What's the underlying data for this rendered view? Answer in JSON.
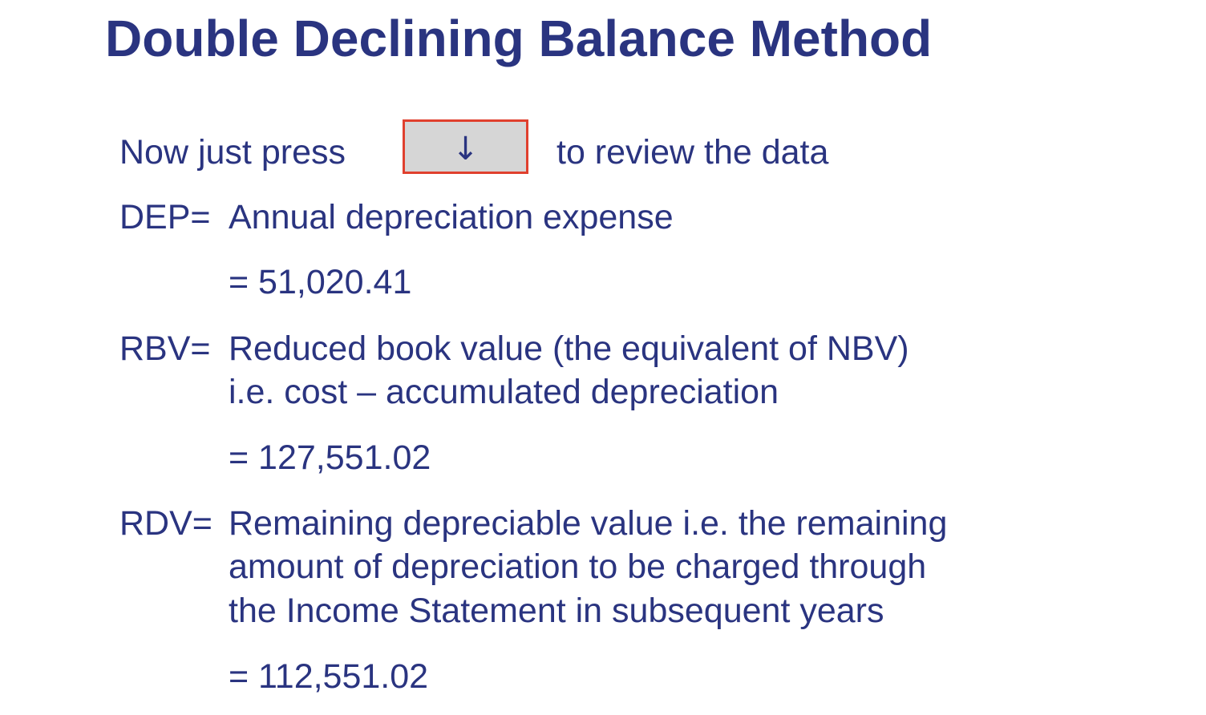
{
  "slide": {
    "title": "Double Declining Balance Method",
    "instruction": {
      "before": "Now just press",
      "key_icon": "down-arrow-icon",
      "key_glyph": "↓",
      "after": "to review the data"
    },
    "definitions": [
      {
        "label": "DEP=",
        "lines": [
          "Annual depreciation expense"
        ],
        "value": "= 51,020.41"
      },
      {
        "label": "RBV=",
        "lines": [
          "Reduced book value (the equivalent of NBV)",
          "i.e. cost – accumulated depreciation"
        ],
        "value": "= 127,551.02"
      },
      {
        "label": "RDV=",
        "lines": [
          "Remaining depreciable value i.e. the remaining",
          "amount of depreciation to be charged through",
          "the Income Statement in subsequent years"
        ],
        "value": "= 112,551.02"
      }
    ],
    "colors": {
      "text": "#2a3480",
      "key_fill": "#d6d6d6",
      "key_border": "#e0402e"
    }
  }
}
